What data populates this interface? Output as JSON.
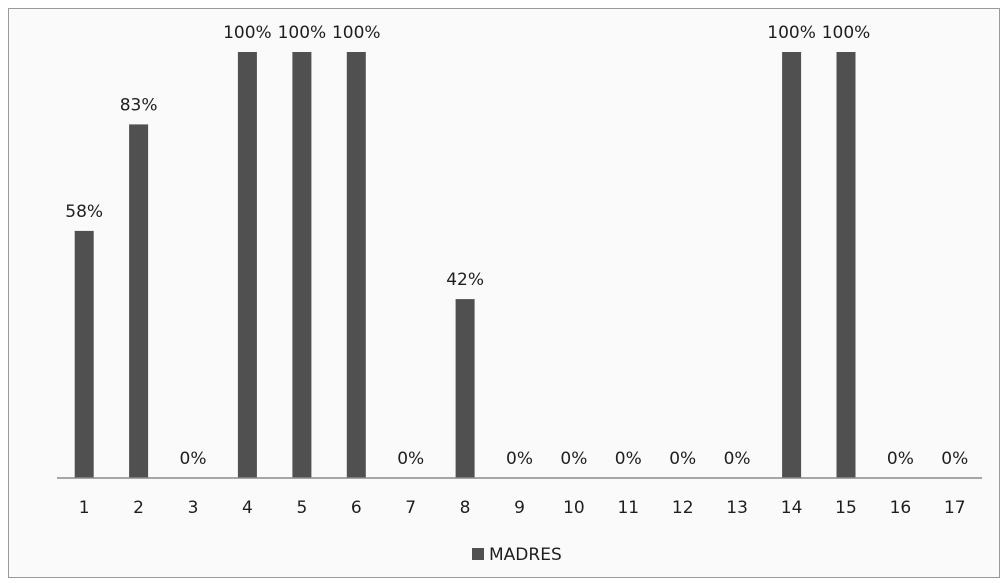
{
  "chart_data": {
    "type": "bar",
    "categories": [
      "1",
      "2",
      "3",
      "4",
      "5",
      "6",
      "7",
      "8",
      "9",
      "10",
      "11",
      "12",
      "13",
      "14",
      "15",
      "16",
      "17"
    ],
    "series": [
      {
        "name": "MADRES",
        "values": [
          58,
          83,
          0,
          100,
          100,
          100,
          0,
          42,
          0,
          0,
          0,
          0,
          0,
          100,
          100,
          0,
          0
        ],
        "data_labels": [
          "58%",
          "83%",
          "0%",
          "100%",
          "100%",
          "100%",
          "0%",
          "42%",
          "0%",
          "0%",
          "0%",
          "0%",
          "0%",
          "100%",
          "100%",
          "0%",
          "0%"
        ],
        "color": "#505050"
      }
    ],
    "ylim": [
      0,
      100
    ],
    "y_axis_visible": false,
    "grid": false,
    "legend": "bottom"
  }
}
